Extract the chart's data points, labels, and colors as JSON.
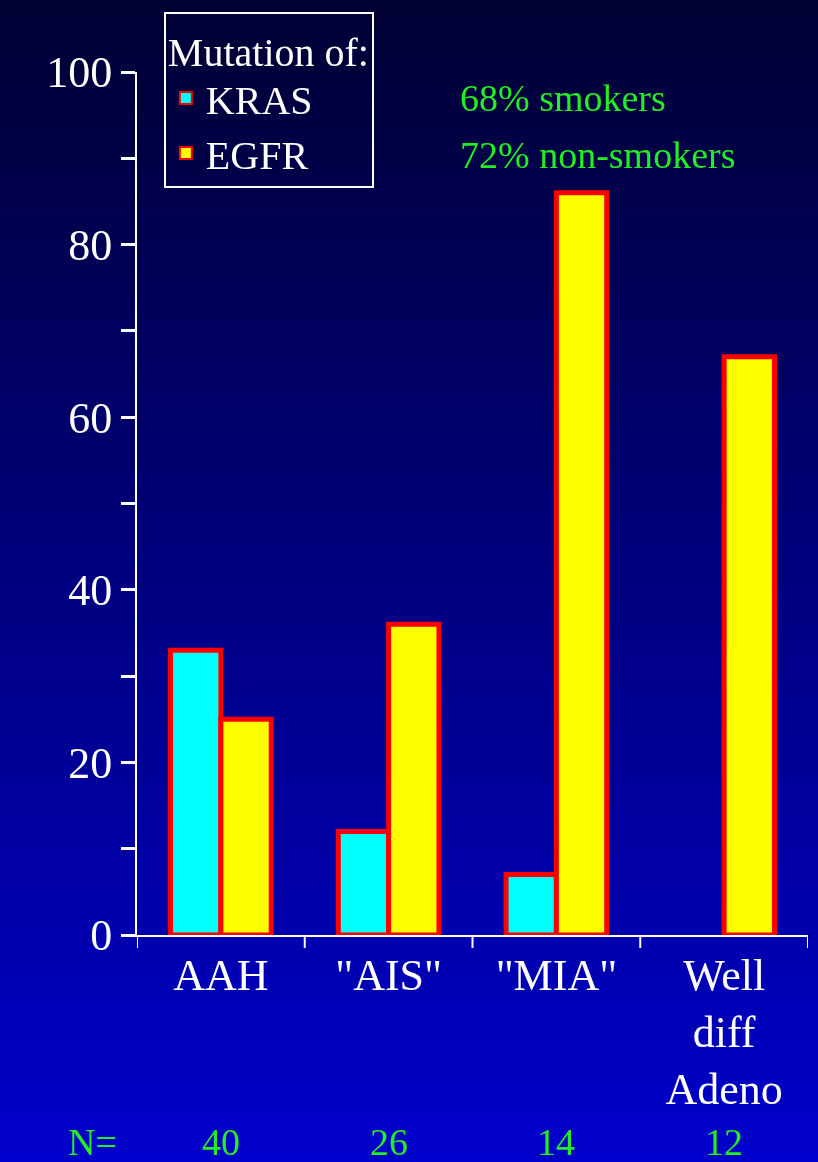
{
  "chart_data": {
    "type": "bar",
    "categories": [
      "AAH",
      "\"AIS\"",
      "\"MIA\"",
      "Well diff Adeno"
    ],
    "series": [
      {
        "name": "KRAS",
        "color": "#00ffff",
        "values": [
          33,
          12,
          7,
          null
        ]
      },
      {
        "name": "EGFR",
        "color": "#ffff00",
        "values": [
          25,
          36,
          86,
          67
        ]
      }
    ],
    "legend_title": "Mutation of:",
    "legend": "top left",
    "annotations": [
      "68% smokers",
      "72% non-smokers",
      "N=",
      "40",
      "26",
      "14",
      "12"
    ],
    "ylim": [
      0,
      100
    ],
    "yticks": [
      0,
      {
        "value": 10,
        "label": null
      },
      20,
      {
        "value": 30,
        "label": null
      },
      40,
      {
        "value": 50,
        "label": null
      },
      60,
      {
        "value": 70,
        "label": null
      },
      80,
      {
        "value": 90,
        "label": null
      },
      100
    ],
    "grid": false
  }
}
